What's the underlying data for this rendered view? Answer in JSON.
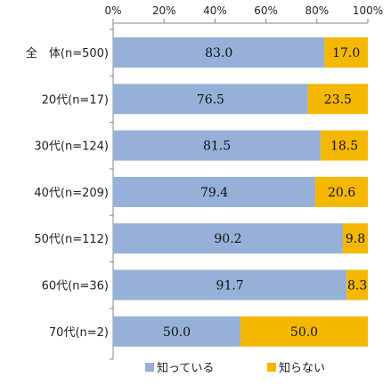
{
  "chart_data": {
    "type": "bar",
    "orientation": "horizontal",
    "stacked": true,
    "categories": [
      "全　体(n=500)",
      "20代(n=17)",
      "30代(n=124)",
      "40代(n=209)",
      "50代(n=112)",
      "60代(n=36)",
      "70代(n=2)"
    ],
    "series": [
      {
        "name": "知っている",
        "values": [
          83.0,
          76.5,
          81.5,
          79.4,
          90.2,
          91.7,
          50.0
        ],
        "color": "#96b0d8"
      },
      {
        "name": "知らない",
        "values": [
          17.0,
          23.5,
          18.5,
          20.6,
          9.8,
          8.3,
          50.0
        ],
        "color": "#f5b800"
      }
    ],
    "value_labels": [
      [
        "83.0",
        "76.5",
        "81.5",
        "79.4",
        "90.2",
        "91.7",
        "50.0"
      ],
      [
        "17.0",
        "23.5",
        "18.5",
        "20.6",
        "9.8",
        "8.3",
        "50.0"
      ]
    ],
    "x_ticks": [
      "0%",
      "20%",
      "40%",
      "60%",
      "80%",
      "100%"
    ],
    "xlim": [
      0,
      100
    ],
    "x_axis_position": "top",
    "grid": false,
    "legend_position": "bottom"
  }
}
